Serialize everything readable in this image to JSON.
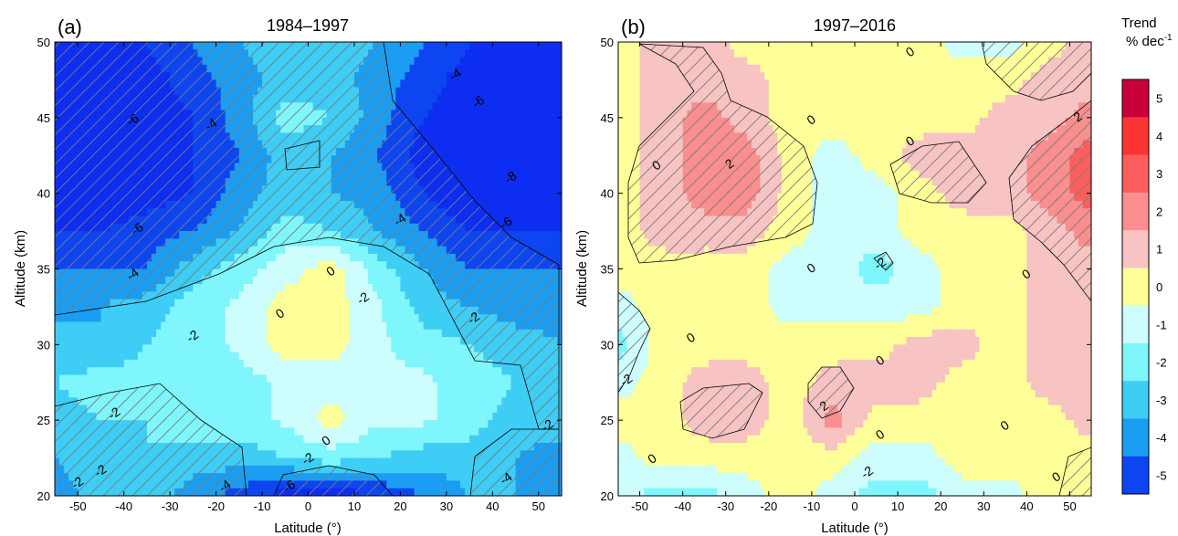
{
  "chart_data": [
    {
      "type": "heatmap",
      "panel_label": "(a)",
      "title": "1984–1997",
      "xlabel": "Latitude (°)",
      "ylabel": "Altitude (km)",
      "xlim": [
        -55,
        55
      ],
      "ylim": [
        20,
        50
      ],
      "x_ticks": [
        "-50",
        "-40",
        "-30",
        "-20",
        "-10",
        "0",
        "10",
        "20",
        "30",
        "40",
        "50"
      ],
      "y_ticks": [
        "20",
        "25",
        "30",
        "35",
        "40",
        "45",
        "50"
      ],
      "x": [
        -55,
        -45,
        -35,
        -25,
        -15,
        -5,
        5,
        15,
        25,
        35,
        45,
        55
      ],
      "y": [
        20,
        22.5,
        25,
        27.5,
        30,
        32.5,
        35,
        37.5,
        40,
        42.5,
        45,
        47.5,
        50
      ],
      "z": [
        [
          -3.5,
          -2.5,
          -2.5,
          -3.5,
          -4.5,
          -5.5,
          -5.8,
          -5,
          -4,
          -3,
          -3,
          -3.5
        ],
        [
          -3,
          -2.5,
          -2,
          -2.5,
          -2.5,
          -2,
          -1.5,
          -2,
          -2.5,
          -2.5,
          -3,
          -3.5
        ],
        [
          -2.5,
          -2,
          -2,
          -1.5,
          -1.5,
          -0.8,
          0.5,
          -0.8,
          -0.8,
          -1.5,
          -2.5,
          -2.5
        ],
        [
          -2,
          -1.5,
          -1.5,
          -1.5,
          -1.5,
          -0.8,
          -0.5,
          -0.8,
          -0.8,
          -1.5,
          -2,
          -2.5
        ],
        [
          -2.5,
          -3,
          -2,
          -1.5,
          -0.8,
          0.5,
          0.5,
          -0.8,
          -1.5,
          -2,
          -2.5,
          -3
        ],
        [
          -3.5,
          -3,
          -2.5,
          -1.5,
          -0.8,
          0.5,
          0.5,
          -0.8,
          -2.5,
          -3,
          -3.5,
          -3.5
        ],
        [
          -4,
          -4,
          -4,
          -2.5,
          -1.5,
          -0.5,
          0.5,
          -1.5,
          -3,
          -4,
          -4,
          -4
        ],
        [
          -5,
          -5,
          -4.5,
          -4,
          -3,
          -1.5,
          -2,
          -3,
          -4,
          -5,
          -5,
          -5
        ],
        [
          -6,
          -6,
          -5.5,
          -5,
          -3.5,
          -2.5,
          -3,
          -3.5,
          -5,
          -6,
          -6,
          -6
        ],
        [
          -6,
          -6,
          -6,
          -5,
          -4,
          -2.5,
          -3,
          -4,
          -5.5,
          -6,
          -6,
          -6
        ],
        [
          -6,
          -6,
          -6,
          -5,
          -3.5,
          -1.5,
          -2,
          -3.5,
          -5,
          -6,
          -6,
          -6
        ],
        [
          -6,
          -6,
          -5.5,
          -4.5,
          -3.5,
          -2.5,
          -2.5,
          -3.5,
          -4.5,
          -5.5,
          -6,
          -6
        ],
        [
          -5.5,
          -5.5,
          -5,
          -4,
          -3,
          -2.5,
          -2.5,
          -3,
          -4,
          -5,
          -5.5,
          -5.5
        ]
      ],
      "contour_labels": [
        {
          "text": "-6",
          "x": -38,
          "y": 44.8
        },
        {
          "text": "-4",
          "x": -21,
          "y": 44.5
        },
        {
          "text": "-4",
          "x": 32,
          "y": 47.8
        },
        {
          "text": "-6",
          "x": 37,
          "y": 46.0
        },
        {
          "text": "-8",
          "x": 44,
          "y": 41.0
        },
        {
          "text": "-4",
          "x": 20,
          "y": 38.2
        },
        {
          "text": "-6",
          "x": 43,
          "y": 38.0
        },
        {
          "text": "-6",
          "x": -37,
          "y": 37.6
        },
        {
          "text": "-4",
          "x": -38,
          "y": 34.6
        },
        {
          "text": "0",
          "x": 5,
          "y": 34.8
        },
        {
          "text": "0",
          "x": -6,
          "y": 32.0
        },
        {
          "text": "-2",
          "x": 12,
          "y": 33.0
        },
        {
          "text": "-2",
          "x": -25,
          "y": 30.5
        },
        {
          "text": "-2",
          "x": 36,
          "y": 31.7
        },
        {
          "text": "-2",
          "x": -42,
          "y": 25.4
        },
        {
          "text": "-2",
          "x": 52,
          "y": 24.6
        },
        {
          "text": "0",
          "x": 4,
          "y": 23.6
        },
        {
          "text": "-2",
          "x": 0,
          "y": 22.4
        },
        {
          "text": "-2",
          "x": -50,
          "y": 20.8
        },
        {
          "text": "-2",
          "x": -45,
          "y": 21.6
        },
        {
          "text": "-4",
          "x": 43,
          "y": 21.1
        },
        {
          "text": "-4",
          "x": -18,
          "y": 20.6
        },
        {
          "text": "-6",
          "x": -4,
          "y": 20.6
        }
      ]
    },
    {
      "type": "heatmap",
      "panel_label": "(b)",
      "title": "1997–2016",
      "xlabel": "Latitude (°)",
      "ylabel": "Altitude (km)",
      "xlim": [
        -55,
        55
      ],
      "ylim": [
        20,
        50
      ],
      "x_ticks": [
        "-50",
        "-40",
        "-30",
        "-20",
        "-10",
        "0",
        "10",
        "20",
        "30",
        "40",
        "50"
      ],
      "y_ticks": [
        "20",
        "25",
        "30",
        "35",
        "40",
        "45",
        "50"
      ],
      "x": [
        -55,
        -45,
        -35,
        -25,
        -15,
        -5,
        5,
        15,
        25,
        35,
        45,
        55
      ],
      "y": [
        20,
        22.5,
        25,
        27.5,
        30,
        32.5,
        35,
        37.5,
        40,
        42.5,
        45,
        47.5,
        50
      ],
      "z": [
        [
          -0.5,
          -1.5,
          -1.5,
          -0.5,
          0.5,
          -0.5,
          -1.5,
          -1.5,
          -0.5,
          -0.5,
          0.5,
          0.5
        ],
        [
          -0.5,
          0.5,
          0.5,
          0.5,
          0.5,
          0.5,
          -0.5,
          -0.5,
          0.5,
          0.5,
          0.5,
          0.5
        ],
        [
          0.5,
          0.5,
          1.5,
          1.5,
          0.5,
          2.5,
          0.5,
          0.5,
          0.5,
          0.5,
          0.5,
          1.5
        ],
        [
          -0.5,
          0.5,
          1.5,
          1.5,
          0.5,
          1.5,
          1.5,
          1.5,
          0.5,
          0.5,
          1.5,
          1.5
        ],
        [
          -1.5,
          0.5,
          0.5,
          0.5,
          0.5,
          0.5,
          0.5,
          1.5,
          1.5,
          0.5,
          1.5,
          1.5
        ],
        [
          -0.5,
          0.5,
          0.5,
          0.5,
          -0.5,
          -0.5,
          -0.5,
          -0.5,
          0.5,
          0.5,
          1.5,
          1.5
        ],
        [
          0.5,
          0.5,
          0.5,
          0.5,
          -0.5,
          -0.5,
          -1.5,
          -0.5,
          0.5,
          0.5,
          1.5,
          1.5
        ],
        [
          0.5,
          1.5,
          1.5,
          1.5,
          0.5,
          -0.5,
          -0.5,
          0.5,
          0.5,
          0.5,
          1.5,
          2.5
        ],
        [
          0.5,
          1.5,
          2.5,
          2.5,
          0.5,
          -0.5,
          -0.5,
          0.5,
          1.5,
          1.5,
          2.5,
          3.5
        ],
        [
          0.5,
          1.5,
          2.5,
          2.5,
          0.5,
          -0.5,
          0.5,
          1.5,
          1.5,
          1.5,
          2.5,
          3.5
        ],
        [
          0.5,
          1.5,
          2.5,
          1.5,
          0.5,
          0.5,
          0.5,
          0.5,
          0.5,
          1.5,
          1.5,
          2.5
        ],
        [
          0.5,
          1.5,
          1.5,
          1.5,
          0.5,
          0.5,
          0.5,
          0.5,
          0.5,
          0.5,
          1.5,
          1.5
        ],
        [
          0.5,
          1.5,
          1.5,
          0.5,
          0.5,
          0.5,
          0.5,
          0.5,
          -0.5,
          -0.5,
          0.5,
          1.5
        ]
      ],
      "contour_labels": [
        {
          "text": "0",
          "x": 13,
          "y": 49.3
        },
        {
          "text": "0",
          "x": -10,
          "y": 44.8
        },
        {
          "text": "0",
          "x": 13,
          "y": 43.4
        },
        {
          "text": "2",
          "x": -29,
          "y": 41.9
        },
        {
          "text": "2",
          "x": 52,
          "y": 45.0
        },
        {
          "text": "0",
          "x": -46,
          "y": 41.8
        },
        {
          "text": "-2",
          "x": 6,
          "y": 35.3
        },
        {
          "text": "0",
          "x": -10,
          "y": 35.0
        },
        {
          "text": "0",
          "x": 40,
          "y": 34.6
        },
        {
          "text": "0",
          "x": -38,
          "y": 30.4
        },
        {
          "text": "0",
          "x": 6,
          "y": 28.9
        },
        {
          "text": "-2",
          "x": -53,
          "y": 27.6
        },
        {
          "text": "2",
          "x": -7,
          "y": 25.9
        },
        {
          "text": "0",
          "x": 6,
          "y": 24.0
        },
        {
          "text": "0",
          "x": -47,
          "y": 22.4
        },
        {
          "text": "0",
          "x": 35,
          "y": 24.6
        },
        {
          "text": "-2",
          "x": 3,
          "y": 21.5
        },
        {
          "text": "0",
          "x": 47,
          "y": 21.2
        }
      ]
    }
  ],
  "colorbar": {
    "title_line1": "Trend",
    "title_line2": "% dec",
    "title_sup": "-1",
    "levels": [
      {
        "label": "5",
        "color": "#c8003a"
      },
      {
        "label": "4",
        "color": "#fb3434"
      },
      {
        "label": "3",
        "color": "#fc5e5e"
      },
      {
        "label": "2",
        "color": "#fb8e8e"
      },
      {
        "label": "1",
        "color": "#f7c3c3"
      },
      {
        "label": "0",
        "color": "#ffff99"
      },
      {
        "label": "-1",
        "color": "#cdfdfc"
      },
      {
        "label": "-2",
        "color": "#7ef6fb"
      },
      {
        "label": "-3",
        "color": "#3ecdf5"
      },
      {
        "label": "-4",
        "color": "#1b9df2"
      },
      {
        "label": "-5",
        "color": "#0d45f0"
      }
    ],
    "band_colors": [
      {
        "min": -99,
        "max": -5,
        "color": "#0d2ef0"
      },
      {
        "min": -5,
        "max": -4,
        "color": "#0d45f0"
      },
      {
        "min": -4,
        "max": -3,
        "color": "#1b9df2"
      },
      {
        "min": -3,
        "max": -2,
        "color": "#3ecdf5"
      },
      {
        "min": -2,
        "max": -1,
        "color": "#7ef6fb"
      },
      {
        "min": -1,
        "max": 0,
        "color": "#cdfdfc"
      },
      {
        "min": 0,
        "max": 1,
        "color": "#ffff99"
      },
      {
        "min": 1,
        "max": 2,
        "color": "#f7c3c3"
      },
      {
        "min": 2,
        "max": 3,
        "color": "#fb8e8e"
      },
      {
        "min": 3,
        "max": 4,
        "color": "#fc5e5e"
      },
      {
        "min": 4,
        "max": 5,
        "color": "#fb3434"
      },
      {
        "min": 5,
        "max": 99,
        "color": "#c8003a"
      }
    ]
  }
}
